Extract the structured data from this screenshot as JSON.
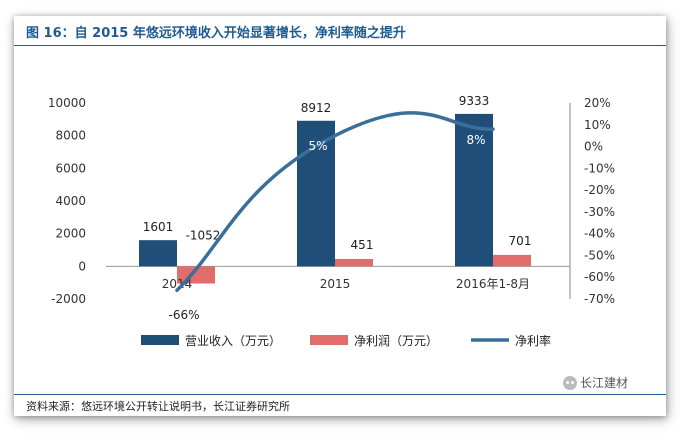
{
  "title": "图 16：自 2015 年悠远环境收入开始显著增长，净利率随之提升",
  "source": "资料来源：悠远环境公开转让说明书，长江证券研究所",
  "watermark": "长江建材",
  "colors": {
    "revenue": "#1f4e79",
    "profit": "#e06c6c",
    "margin": "#3a6f9a",
    "title": "#1f5a93"
  },
  "chart_data": {
    "type": "bar",
    "categories": [
      "2014",
      "2015",
      "2016年1-8月"
    ],
    "series": [
      {
        "name": "营业收入（万元）",
        "type": "bar",
        "axis": "left",
        "values": [
          1601,
          8912,
          9333
        ]
      },
      {
        "name": "净利润（万元）",
        "type": "bar",
        "axis": "left",
        "values": [
          -1052,
          451,
          701
        ]
      },
      {
        "name": "净利率",
        "type": "line",
        "axis": "right",
        "values": [
          -66,
          5,
          8
        ]
      }
    ],
    "bar_labels": [
      [
        "1601",
        "8912",
        "9333"
      ],
      [
        "-1052",
        "451",
        "701"
      ]
    ],
    "line_labels": [
      "-66%",
      "5%",
      "8%"
    ],
    "y_left": {
      "min": -2000,
      "max": 10000,
      "ticks": [
        "-2000",
        "0",
        "2000",
        "4000",
        "6000",
        "8000",
        "10000"
      ]
    },
    "y_right": {
      "min": -70,
      "max": 20,
      "ticks": [
        "-70%",
        "-60%",
        "-50%",
        "-40%",
        "-30%",
        "-20%",
        "-10%",
        "0%",
        "10%",
        "20%"
      ]
    },
    "legend_position": "bottom",
    "grid": false
  }
}
